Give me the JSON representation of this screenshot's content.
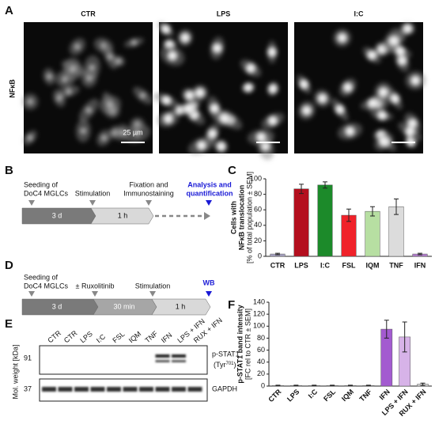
{
  "panel_labels": [
    "A",
    "B",
    "C",
    "D",
    "E",
    "F"
  ],
  "panel_a": {
    "stain": "NFκB",
    "conditions": [
      "CTR",
      "LPS",
      "I:C"
    ],
    "scale_bar": "25 µm"
  },
  "panel_b": {
    "steps": [
      [
        "Seeding of",
        "DoC4 MGLCs"
      ],
      [
        "Stimulation"
      ],
      [
        "Fixation and",
        "Immunostaining"
      ]
    ],
    "final": [
      "Analysis and",
      "quantification"
    ],
    "durations": [
      "3 d",
      "1 h"
    ]
  },
  "panel_d": {
    "steps": [
      [
        "Seeding of",
        "DoC4 MGLCs"
      ],
      [
        "± Ruxolitinib"
      ],
      [
        "Stimulation"
      ]
    ],
    "final": "WB",
    "durations": [
      "3 d",
      "30 min",
      "1 h"
    ]
  },
  "panel_e": {
    "axis_label": "Mol. weight [kDa]",
    "lanes": [
      "CTR",
      "CTR",
      "LPS",
      "I:C",
      "FSL",
      "IQM",
      "TNF",
      "IFN",
      "LPS + IFN",
      "RUX + IFN"
    ],
    "weights": [
      "91",
      "37"
    ],
    "target": "p-STAT1",
    "target_site": [
      "(Tyr",
      "701",
      ")"
    ],
    "loading": "GAPDH"
  },
  "chart_data": [
    {
      "type": "bar",
      "ylabel": [
        "Cells with",
        "NFκB translocation",
        "[% of total population ± SEM]"
      ],
      "categories": [
        "CTR",
        "LPS",
        "I:C",
        "FSL",
        "IQM",
        "TNF",
        "IFN"
      ],
      "values": [
        3,
        87,
        92,
        53,
        58,
        64,
        3
      ],
      "errors": [
        1,
        6,
        4,
        8,
        6,
        10,
        1
      ],
      "colors": [
        "#a9a4c4",
        "#b40f1e",
        "#1c8a2a",
        "#f0222a",
        "#b7dfa2",
        "#dcdcdc",
        "#b57fd0"
      ],
      "ylim": [
        0,
        100
      ],
      "yticks": [
        0,
        20,
        40,
        60,
        80,
        100
      ]
    },
    {
      "type": "bar",
      "ylabel": [
        "p-STAT1 band intensity",
        "[FC rel to CTR ± SEM]"
      ],
      "categories": [
        "CTR",
        "LPS",
        "I:C",
        "FSL",
        "IQM",
        "TNF",
        "IFN",
        "LPS + IFN",
        "RUX + IFN"
      ],
      "values": [
        1,
        1,
        1,
        1,
        1,
        1,
        95,
        82,
        3
      ],
      "errors": [
        0.5,
        0.5,
        0.5,
        0.5,
        0.5,
        0.5,
        15,
        25,
        2
      ],
      "colors": [
        "#cfcfcf",
        "#cfcfcf",
        "#cfcfcf",
        "#cfcfcf",
        "#cfcfcf",
        "#cfcfcf",
        "#a35bd0",
        "#d7b3e8",
        "#cfcfcf"
      ],
      "ylim": [
        0,
        140
      ],
      "yticks": [
        0,
        20,
        40,
        60,
        80,
        100,
        120,
        140
      ]
    }
  ]
}
